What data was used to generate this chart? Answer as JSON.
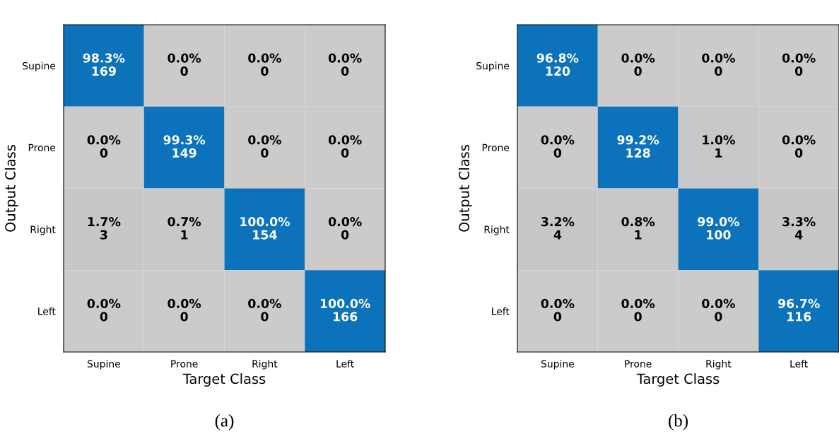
{
  "chart_data": [
    {
      "type": "heatmap",
      "xlabel": "Target Class",
      "ylabel": "Output Class",
      "categories": [
        "Supine",
        "Prone",
        "Right",
        "Left"
      ],
      "y_categories": [
        "Supine",
        "Prone",
        "Right",
        "Left"
      ],
      "cells": [
        [
          98.3,
          0.0,
          0.0,
          0.0
        ],
        [
          0.0,
          99.3,
          0.0,
          0.0
        ],
        [
          1.7,
          0.7,
          100.0,
          0.0
        ],
        [
          0.0,
          0.0,
          0.0,
          100.0
        ]
      ],
      "cell_labels": [
        [
          "98.3%",
          "0.0%",
          "0.0%",
          "0.0%"
        ],
        [
          "0.0%",
          "99.3%",
          "0.0%",
          "0.0%"
        ],
        [
          "1.7%",
          "0.7%",
          "100.0%",
          "0.0%"
        ],
        [
          "0.0%",
          "0.0%",
          "0.0%",
          "100.0%"
        ]
      ],
      "annotations": [
        "169",
        "0",
        "0",
        "0",
        "0",
        "149",
        "0",
        "0",
        "3",
        "1",
        "154",
        "0",
        "0",
        "0",
        "0",
        "166",
        "(a)"
      ]
    },
    {
      "type": "heatmap",
      "xlabel": "Target Class",
      "ylabel": "Output Class",
      "categories": [
        "Supine",
        "Prone",
        "Right",
        "Left"
      ],
      "y_categories": [
        "Supine",
        "Prone",
        "Right",
        "Left"
      ],
      "cells": [
        [
          96.8,
          0.0,
          0.0,
          0.0
        ],
        [
          0.0,
          99.2,
          1.0,
          0.0
        ],
        [
          3.2,
          0.8,
          99.0,
          3.3
        ],
        [
          0.0,
          0.0,
          0.0,
          96.7
        ]
      ],
      "cell_labels": [
        [
          "96.8%",
          "0.0%",
          "0.0%",
          "0.0%"
        ],
        [
          "0.0%",
          "99.2%",
          "1.0%",
          "0.0%"
        ],
        [
          "3.2%",
          "0.8%",
          "99.0%",
          "3.3%"
        ],
        [
          "0.0%",
          "0.0%",
          "0.0%",
          "96.7%"
        ]
      ],
      "annotations": [
        "120",
        "0",
        "0",
        "0",
        "0",
        "128",
        "1",
        "0",
        "4",
        "1",
        "100",
        "4",
        "0",
        "0",
        "0",
        "116",
        "(b)"
      ]
    }
  ]
}
